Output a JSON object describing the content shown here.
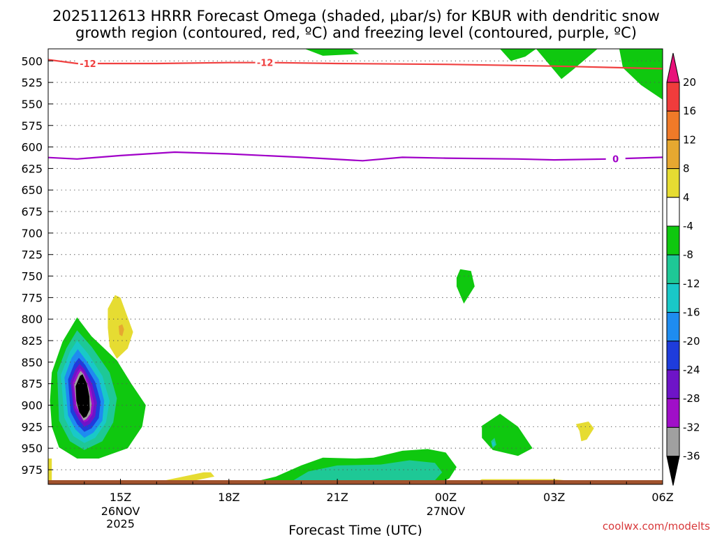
{
  "chart_data": {
    "type": "heatmap",
    "title_line1": "2025112613 HRRR Forecast Omega (shaded, μbar/s) for KBUR with dendritic snow",
    "title_line2": "growth region (contoured, red, ºC) and freezing level (contoured, purple, ºC)",
    "xlabel": "Forecast Time (UTC)",
    "credit": "coolwx.com/modelts",
    "yaxis": {
      "units": "hPa",
      "ylim": [
        486,
        992
      ],
      "ticks": [
        500,
        525,
        550,
        575,
        600,
        625,
        650,
        675,
        700,
        725,
        750,
        775,
        800,
        825,
        850,
        875,
        900,
        925,
        950,
        975
      ],
      "tick_labels": [
        "500",
        "525",
        "550",
        "575",
        "600",
        "625",
        "650",
        "675",
        "700",
        "725",
        "750",
        "775",
        "800",
        "825",
        "850",
        "875",
        "900",
        "925",
        "950",
        "975"
      ]
    },
    "xaxis": {
      "units": "hours since 2025-11-26 13Z",
      "xlim": [
        0,
        17
      ],
      "ticks": [
        {
          "x": 2,
          "label": "15Z",
          "sub1": "26NOV",
          "sub2": "2025"
        },
        {
          "x": 5,
          "label": "18Z",
          "sub1": "",
          "sub2": ""
        },
        {
          "x": 8,
          "label": "21Z",
          "sub1": "",
          "sub2": ""
        },
        {
          "x": 11,
          "label": "00Z",
          "sub1": "27NOV",
          "sub2": ""
        },
        {
          "x": 14,
          "label": "03Z",
          "sub1": "",
          "sub2": ""
        },
        {
          "x": 17,
          "label": "06Z",
          "sub1": "",
          "sub2": ""
        }
      ]
    },
    "colorbar": {
      "labels": [
        "20",
        "16",
        "12",
        "8",
        "4",
        "-4",
        "-8",
        "-12",
        "-16",
        "-20",
        "-24",
        "-28",
        "-32",
        "-36"
      ],
      "bins": [
        {
          "range": ">20",
          "color": "#e8117a"
        },
        {
          "range": "16 to 20",
          "color": "#f03c3c"
        },
        {
          "range": "12 to 16",
          "color": "#f07a28"
        },
        {
          "range": "8 to 12",
          "color": "#e6a830"
        },
        {
          "range": "4 to 8",
          "color": "#e6dc32"
        },
        {
          "range": "-4 to 4",
          "color": "#ffffff"
        },
        {
          "range": "-8 to -4",
          "color": "#0fc80f"
        },
        {
          "range": "-12 to -8",
          "color": "#1ec896"
        },
        {
          "range": "-16 to -12",
          "color": "#19c8c8"
        },
        {
          "range": "-20 to -16",
          "color": "#1e8cf0"
        },
        {
          "range": "-24 to -20",
          "color": "#1e3cdc"
        },
        {
          "range": "-28 to -24",
          "color": "#6e14c8"
        },
        {
          "range": "-32 to -28",
          "color": "#a00fc8"
        },
        {
          "range": "-36 to -32",
          "color": "#a0a0a0"
        },
        {
          "range": "<-36",
          "color": "#000000"
        }
      ]
    },
    "contours": [
      {
        "name": "dendritic growth (-12 C)",
        "color": "#f04040",
        "label": "-12",
        "label_x": [
          1.1,
          6.0
        ],
        "points": [
          [
            -0.1,
            498
          ],
          [
            0.8,
            503
          ],
          [
            3,
            503
          ],
          [
            5,
            502
          ],
          [
            6.2,
            502
          ],
          [
            8,
            503
          ],
          [
            11,
            504
          ],
          [
            14,
            506
          ],
          [
            17,
            509
          ]
        ]
      },
      {
        "name": "freezing level (0 C)",
        "color": "#a000c8",
        "label": "0",
        "label_x": [
          15.7
        ],
        "points": [
          [
            -0.1,
            612
          ],
          [
            0.8,
            614
          ],
          [
            2,
            610
          ],
          [
            3.5,
            606
          ],
          [
            5,
            608
          ],
          [
            7,
            612
          ],
          [
            8.7,
            616
          ],
          [
            9.8,
            612
          ],
          [
            11,
            613
          ],
          [
            13,
            614
          ],
          [
            14,
            615
          ],
          [
            15.5,
            614
          ],
          [
            17,
            612
          ]
        ]
      }
    ],
    "shaded_regions": [
      {
        "bin": "-8 to -4",
        "points": [
          [
            7.1,
            486
          ],
          [
            8.4,
            486
          ],
          [
            8.6,
            492
          ],
          [
            7.6,
            494
          ]
        ]
      },
      {
        "bin": "-8 to -4",
        "points": [
          [
            12.5,
            486
          ],
          [
            13.5,
            486
          ],
          [
            13.2,
            495
          ],
          [
            12.8,
            500
          ]
        ]
      },
      {
        "bin": "-8 to -4",
        "points": [
          [
            13.5,
            486
          ],
          [
            15.2,
            486
          ],
          [
            14.5,
            511
          ],
          [
            14.2,
            521
          ]
        ]
      },
      {
        "bin": "-8 to -4",
        "points": [
          [
            15.8,
            486
          ],
          [
            17,
            486
          ],
          [
            17,
            545
          ],
          [
            16.4,
            528
          ],
          [
            15.9,
            508
          ]
        ]
      },
      {
        "bin": "-8 to -4",
        "points": [
          [
            11.4,
            742
          ],
          [
            11.7,
            744
          ],
          [
            11.8,
            762
          ],
          [
            11.5,
            782
          ],
          [
            11.3,
            762
          ],
          [
            11.3,
            752
          ]
        ]
      },
      {
        "bin": "-8 to -4",
        "points": [
          [
            0.1,
            862
          ],
          [
            0.4,
            826
          ],
          [
            0.8,
            798
          ],
          [
            1.2,
            820
          ],
          [
            1.9,
            848
          ],
          [
            2.3,
            875
          ],
          [
            2.7,
            900
          ],
          [
            2.6,
            925
          ],
          [
            2.2,
            950
          ],
          [
            1.4,
            962
          ],
          [
            0.8,
            962
          ],
          [
            0.3,
            949
          ],
          [
            0.1,
            925
          ],
          [
            0.05,
            895
          ]
        ]
      },
      {
        "bin": "-8 to -4",
        "points": [
          [
            12.0,
            924
          ],
          [
            12.5,
            910
          ],
          [
            13.0,
            925
          ],
          [
            13.4,
            950
          ],
          [
            13.0,
            959
          ],
          [
            12.3,
            952
          ],
          [
            12.0,
            938
          ]
        ]
      },
      {
        "bin": "-8 to -4",
        "points": [
          [
            5.4,
            992
          ],
          [
            6.3,
            983
          ],
          [
            7.0,
            970
          ],
          [
            7.6,
            961
          ],
          [
            8.5,
            962
          ],
          [
            9.0,
            961
          ],
          [
            9.8,
            953
          ],
          [
            10.5,
            951
          ],
          [
            11.0,
            955
          ],
          [
            11.3,
            972
          ],
          [
            11.1,
            985
          ],
          [
            10.8,
            992
          ]
        ]
      },
      {
        "bin": "-12 to -8",
        "points": [
          [
            0.25,
            862
          ],
          [
            0.5,
            834
          ],
          [
            0.8,
            813
          ],
          [
            1.2,
            832
          ],
          [
            1.7,
            862
          ],
          [
            1.9,
            892
          ],
          [
            1.8,
            920
          ],
          [
            1.5,
            942
          ],
          [
            1.0,
            952
          ],
          [
            0.6,
            942
          ],
          [
            0.3,
            918
          ]
        ]
      },
      {
        "bin": "-12 to -8",
        "points": [
          [
            6.6,
            992
          ],
          [
            7.2,
            977
          ],
          [
            8.0,
            970
          ],
          [
            9.2,
            969
          ],
          [
            10.0,
            964
          ],
          [
            10.7,
            967
          ],
          [
            10.9,
            978
          ],
          [
            10.6,
            992
          ]
        ]
      },
      {
        "bin": "-12 to -8",
        "points": [
          [
            12.25,
            942
          ],
          [
            12.35,
            938
          ],
          [
            12.4,
            946
          ],
          [
            12.3,
            950
          ]
        ]
      },
      {
        "bin": "-16 to -12",
        "points": [
          [
            0.35,
            865
          ],
          [
            0.6,
            838
          ],
          [
            0.8,
            825
          ],
          [
            1.1,
            840
          ],
          [
            1.5,
            866
          ],
          [
            1.7,
            895
          ],
          [
            1.6,
            920
          ],
          [
            1.3,
            938
          ],
          [
            1.0,
            944
          ],
          [
            0.7,
            936
          ],
          [
            0.45,
            915
          ]
        ]
      },
      {
        "bin": "-16 to -12",
        "points": [
          [
            12.27,
            944
          ],
          [
            12.33,
            942
          ],
          [
            12.37,
            946
          ],
          [
            12.3,
            948
          ]
        ]
      },
      {
        "bin": "-20 to -16",
        "points": [
          [
            0.45,
            868
          ],
          [
            0.65,
            845
          ],
          [
            0.82,
            835
          ],
          [
            1.05,
            848
          ],
          [
            1.4,
            870
          ],
          [
            1.55,
            895
          ],
          [
            1.5,
            918
          ],
          [
            1.25,
            932
          ],
          [
            1.0,
            938
          ],
          [
            0.75,
            928
          ],
          [
            0.55,
            912
          ]
        ]
      },
      {
        "bin": "-24 to -20",
        "points": [
          [
            0.55,
            870
          ],
          [
            0.72,
            852
          ],
          [
            0.85,
            845
          ],
          [
            1.02,
            853
          ],
          [
            1.3,
            873
          ],
          [
            1.45,
            896
          ],
          [
            1.4,
            915
          ],
          [
            1.2,
            927
          ],
          [
            1.0,
            931
          ],
          [
            0.8,
            922
          ],
          [
            0.62,
            908
          ]
        ]
      },
      {
        "bin": "-28 to -24",
        "points": [
          [
            0.62,
            872
          ],
          [
            0.76,
            858
          ],
          [
            0.87,
            852
          ],
          [
            1.0,
            858
          ],
          [
            1.22,
            876
          ],
          [
            1.35,
            897
          ],
          [
            1.3,
            913
          ],
          [
            1.15,
            922
          ],
          [
            1.0,
            925
          ],
          [
            0.85,
            917
          ],
          [
            0.7,
            905
          ]
        ]
      },
      {
        "bin": "-32 to -28",
        "points": [
          [
            0.68,
            874
          ],
          [
            0.8,
            862
          ],
          [
            0.88,
            857
          ],
          [
            0.99,
            862
          ],
          [
            1.16,
            878
          ],
          [
            1.27,
            898
          ],
          [
            1.22,
            911
          ],
          [
            1.1,
            918
          ],
          [
            1.0,
            920
          ],
          [
            0.88,
            913
          ],
          [
            0.74,
            903
          ]
        ]
      },
      {
        "bin": "-36 to -32",
        "points": [
          [
            0.72,
            876
          ],
          [
            0.84,
            864
          ],
          [
            0.9,
            860
          ],
          [
            0.98,
            864
          ],
          [
            1.12,
            880
          ],
          [
            1.2,
            898
          ],
          [
            1.17,
            910
          ],
          [
            1.06,
            916
          ],
          [
            0.98,
            918
          ],
          [
            0.88,
            910
          ],
          [
            0.78,
            900
          ]
        ]
      },
      {
        "bin": "<-36",
        "points": [
          [
            0.76,
            878
          ],
          [
            0.88,
            866
          ],
          [
            0.95,
            864
          ],
          [
            1.07,
            875
          ],
          [
            1.14,
            890
          ],
          [
            1.15,
            905
          ],
          [
            1.06,
            913
          ],
          [
            0.98,
            915
          ],
          [
            0.86,
            908
          ],
          [
            0.78,
            895
          ]
        ]
      },
      {
        "bin": "4 to 8",
        "points": [
          [
            1.65,
            788
          ],
          [
            1.85,
            772
          ],
          [
            2.0,
            775
          ],
          [
            2.2,
            798
          ],
          [
            2.35,
            815
          ],
          [
            2.2,
            834
          ],
          [
            1.9,
            846
          ],
          [
            1.7,
            832
          ],
          [
            1.65,
            810
          ]
        ]
      },
      {
        "bin": "4 to 8",
        "points": [
          [
            14.6,
            922
          ],
          [
            14.95,
            919
          ],
          [
            15.1,
            927
          ],
          [
            14.9,
            940
          ],
          [
            14.75,
            942
          ],
          [
            14.7,
            930
          ]
        ]
      },
      {
        "bin": "4 to 8",
        "points": [
          [
            0,
            962
          ],
          [
            0.1,
            962
          ],
          [
            0.1,
            992
          ],
          [
            0,
            992
          ]
        ]
      },
      {
        "bin": "4 to 8",
        "points": [
          [
            2.7,
            992
          ],
          [
            3.5,
            985
          ],
          [
            4.3,
            978
          ],
          [
            4.5,
            978
          ],
          [
            4.6,
            983
          ],
          [
            4.0,
            988
          ],
          [
            3.6,
            992
          ]
        ]
      },
      {
        "bin": "4 to 8",
        "points": [
          [
            11.7,
            992
          ],
          [
            12.0,
            986
          ],
          [
            14.0,
            986
          ],
          [
            14.5,
            988
          ],
          [
            14.5,
            992
          ]
        ]
      },
      {
        "bin": "8 to 12",
        "points": [
          [
            1.95,
            808
          ],
          [
            2.05,
            806
          ],
          [
            2.1,
            812
          ],
          [
            2.05,
            820
          ],
          [
            1.97,
            818
          ]
        ]
      }
    ]
  }
}
